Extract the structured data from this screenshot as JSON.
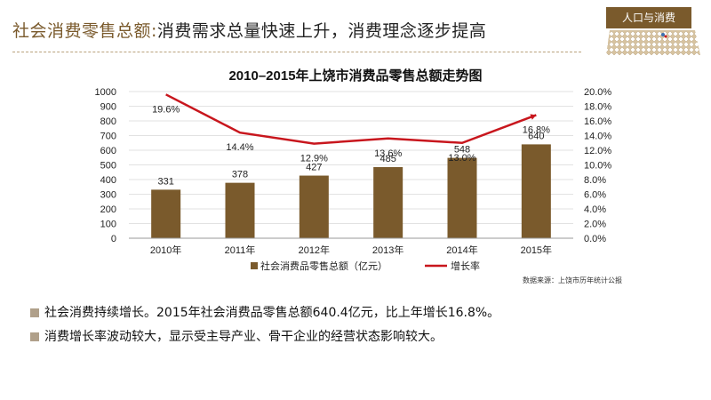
{
  "header": {
    "title_accent": "社会消费零售总额:",
    "title_rest": "消费需求总量快速上升，消费理念逐步提高",
    "section_badge": "人口与消费"
  },
  "colors": {
    "bar": "#7a5a2c",
    "line": "#c8161d",
    "accent": "#7a5a2c"
  },
  "chart_data": {
    "type": "bar",
    "title": "2010–2015年上饶市消费品零售总额走势图",
    "categories": [
      "2010年",
      "2011年",
      "2012年",
      "2013年",
      "2014年",
      "2015年"
    ],
    "series": [
      {
        "name": "社会消费品零售总额（亿元）",
        "type": "bar",
        "axis": "left",
        "values": [
          331,
          378,
          427,
          485,
          548,
          640
        ],
        "labels": [
          "331",
          "378",
          "427",
          "485",
          "548",
          "640"
        ]
      },
      {
        "name": "增长率",
        "type": "line",
        "axis": "right",
        "values": [
          19.6,
          14.4,
          12.9,
          13.6,
          13.0,
          16.8
        ],
        "labels": [
          "19.6%",
          "14.4%",
          "12.9%",
          "13.6%",
          "13.0%",
          "16.8%"
        ]
      }
    ],
    "ylim_left": [
      0,
      1000
    ],
    "yticks_left": [
      "0",
      "100",
      "200",
      "300",
      "400",
      "500",
      "600",
      "700",
      "800",
      "900",
      "1000"
    ],
    "ylim_right": [
      0,
      20
    ],
    "yticks_right": [
      "0.0%",
      "2.0%",
      "4.0%",
      "6.0%",
      "8.0%",
      "10.0%",
      "12.0%",
      "14.0%",
      "16.0%",
      "18.0%",
      "20.0%"
    ],
    "legend_position": "bottom",
    "source": "数据来源：上饶市历年统计公报"
  },
  "bullets": [
    "社会消费持续增长。2015年社会消费品零售总额640.4亿元，比上年增长16.8%。",
    "消费增长率波动较大，显示受主导产业、骨干企业的经营状态影响较大。"
  ]
}
